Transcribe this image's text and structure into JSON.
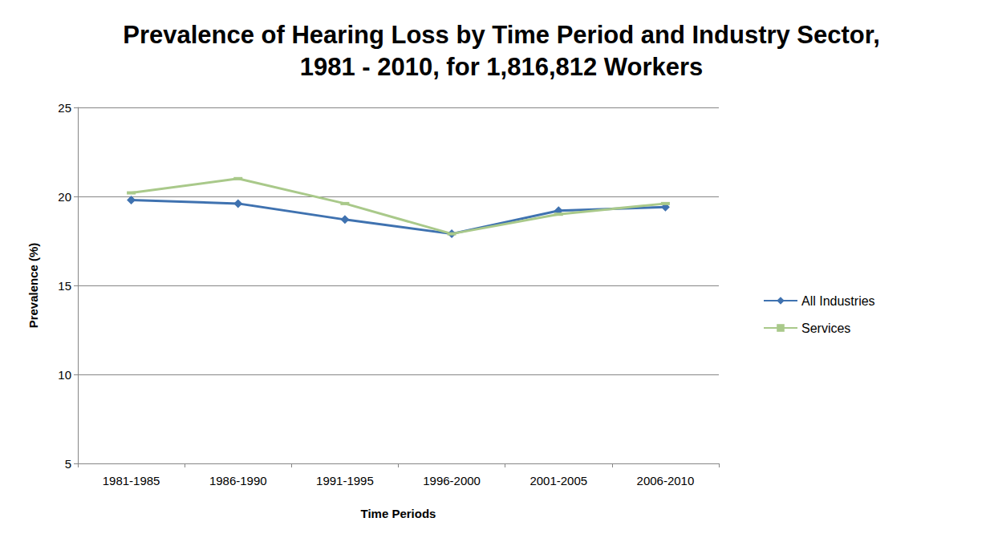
{
  "chart_data": {
    "type": "line",
    "title": "Prevalence of Hearing Loss by Time Period and Industry Sector,\n1981 - 2010, for 1,816,812 Workers",
    "x_label": "Time Periods",
    "y_label": "Prevalence (%)",
    "categories": [
      "1981-1985",
      "1986-1990",
      "1991-1995",
      "1996-2000",
      "2001-2005",
      "2006-2010"
    ],
    "series": [
      {
        "name": "All Industries",
        "color": "#3f72b0",
        "marker": "diamond",
        "values": [
          19.8,
          19.6,
          18.7,
          17.9,
          19.2,
          19.4
        ]
      },
      {
        "name": "Services",
        "color": "#a9c98a",
        "marker": "dash",
        "values": [
          20.2,
          21.0,
          19.6,
          17.9,
          19.0,
          19.6
        ]
      }
    ],
    "ylim": [
      5,
      25
    ],
    "yticks": [
      5,
      10,
      15,
      20,
      25
    ],
    "grid": true,
    "legend": "right"
  }
}
